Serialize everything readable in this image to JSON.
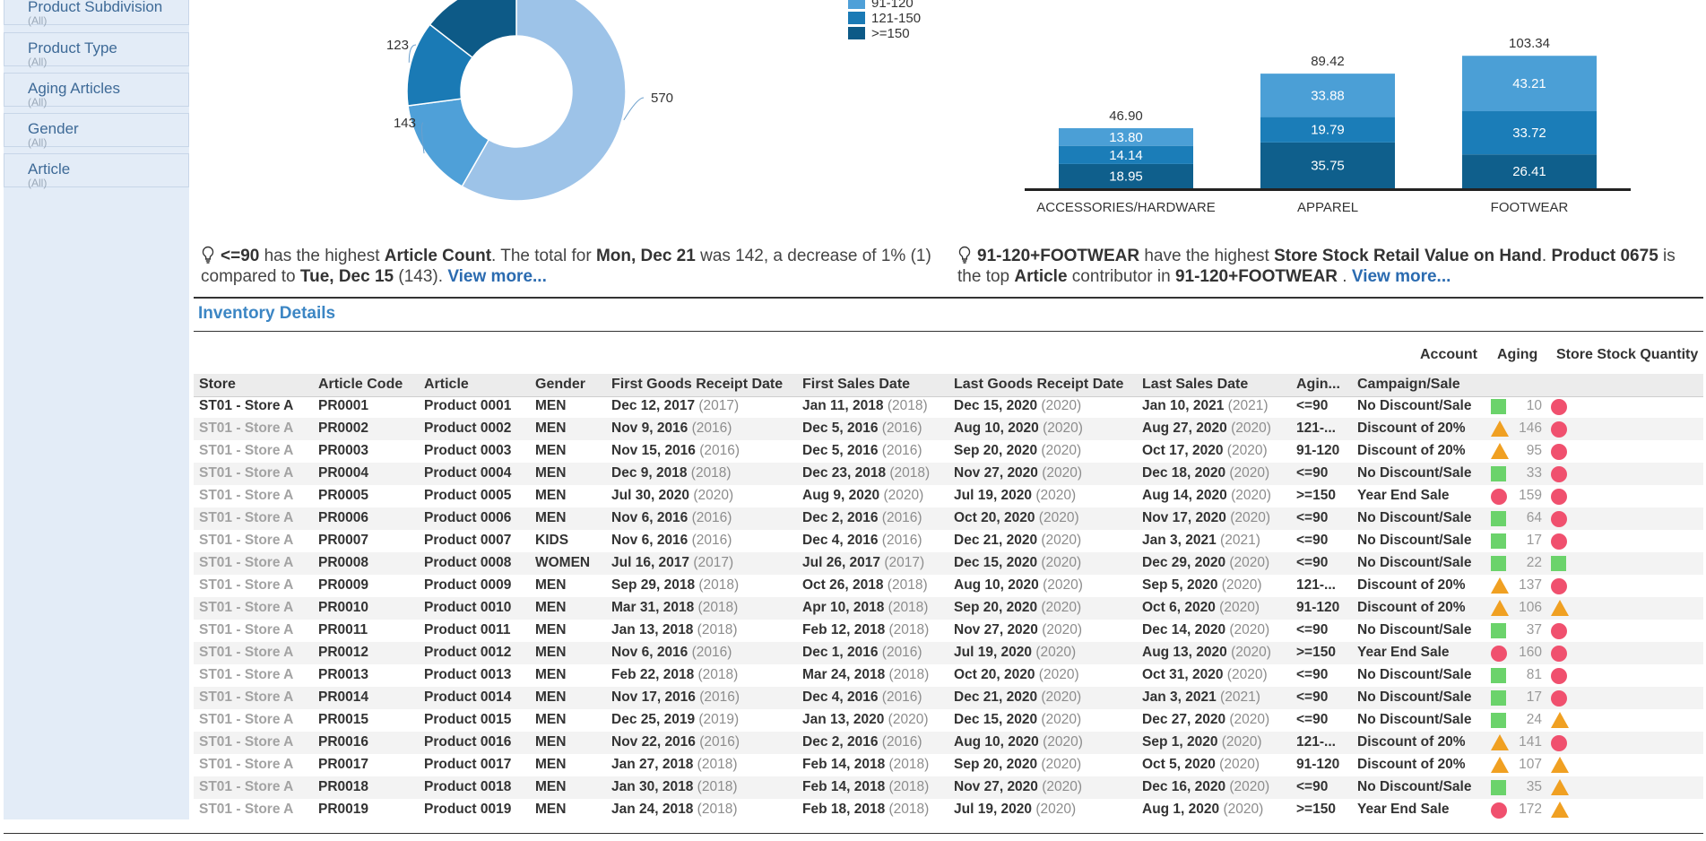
{
  "filters": [
    {
      "title": "Product Subdivision",
      "sub": "(All)"
    },
    {
      "title": "Product Type",
      "sub": "(All)"
    },
    {
      "title": "Aging Articles",
      "sub": "(All)"
    },
    {
      "title": "Gender",
      "sub": "(All)"
    },
    {
      "title": "Article",
      "sub": "(All)"
    }
  ],
  "chart_data": [
    {
      "type": "pie",
      "categories": [
        "<=90",
        "91-120",
        "121-150",
        ">=150"
      ],
      "values": [
        570,
        143,
        123,
        142
      ],
      "value_labels": [
        "570",
        "143",
        "123",
        ""
      ],
      "legend_entries": [
        "91-120",
        "121-150",
        ">=150"
      ],
      "legend_placement": "right",
      "colors": [
        "#9dc3e8",
        "#4fa0d8",
        "#1a7ab5",
        "#0d5a87"
      ]
    },
    {
      "type": "bar",
      "stacked": true,
      "categories": [
        "ACCESSORIES/HARDWARE",
        "APPAREL",
        "FOOTWEAR"
      ],
      "series": [
        {
          "values": [
            18.95,
            35.75,
            26.41
          ]
        },
        {
          "values": [
            14.14,
            19.79,
            33.72
          ]
        },
        {
          "values": [
            13.8,
            33.88,
            43.21
          ]
        }
      ],
      "totals": [
        "46.90",
        "89.42",
        "103.34"
      ],
      "segment_labels": [
        [
          "18.95",
          "14.14",
          "13.80"
        ],
        [
          "35.75",
          "19.79",
          "33.88"
        ],
        [
          "26.41",
          "33.72",
          "43.21"
        ]
      ],
      "colors": [
        "#0f5f8c",
        "#1b7db8",
        "#4b9fd6"
      ],
      "ylim": [
        0,
        110
      ]
    }
  ],
  "insight1": {
    "p1": "<=90",
    "p2": " has the highest ",
    "p3": "Article Count",
    "p4": ". The total for ",
    "p5": "Mon, Dec 21",
    "p6": " was 142, a decrease of 1% (1) compared to ",
    "p7": "Tue, Dec 15",
    "p8": " (143). ",
    "link": "View more..."
  },
  "insight2": {
    "p1": "91-120+FOOTWEAR",
    "p2": " have the highest ",
    "p3": "Store Stock Retail Value on Hand",
    "p4": ". ",
    "p5": "Product 0675",
    "p6": " is the top ",
    "p7": "Article",
    "p8": " contributor in ",
    "p9": "91-120+FOOTWEAR",
    "p10": " . ",
    "link": "View more..."
  },
  "section_title": "Inventory Details",
  "measure_headers": [
    "Account",
    "Aging",
    "Store Stock Quantity"
  ],
  "columns": [
    "Store",
    "Article Code",
    "Article",
    "Gender",
    "First Goods Receipt Date",
    "First Sales Date",
    "Last Goods Receipt Date",
    "Last Sales Date",
    "Agin...",
    "Campaign/Sale"
  ],
  "rows": [
    {
      "store": "ST01 - Store A",
      "code": "PR0001",
      "article": "Product 0001",
      "gender": "MEN",
      "fgr": "Dec 12, 2017",
      "fgr_y": "(2017)",
      "fs": "Jan 11, 2018",
      "fs_y": "(2018)",
      "lgr": "Dec 15, 2020",
      "lgr_y": "(2020)",
      "ls": "Jan 10, 2021",
      "ls_y": "(2021)",
      "aging": "<=90",
      "campaign": "No Discount/Sale",
      "s1": "square",
      "qty": "10",
      "s2": "circle"
    },
    {
      "store": "ST01 - Store A",
      "code": "PR0002",
      "article": "Product 0002",
      "gender": "MEN",
      "fgr": "Nov 9, 2016",
      "fgr_y": "(2016)",
      "fs": "Dec 5, 2016",
      "fs_y": "(2016)",
      "lgr": "Aug 10, 2020",
      "lgr_y": "(2020)",
      "ls": "Aug 27, 2020",
      "ls_y": "(2020)",
      "aging": "121-...",
      "campaign": "Discount of 20%",
      "s1": "triangle",
      "qty": "146",
      "s2": "circle"
    },
    {
      "store": "ST01 - Store A",
      "code": "PR0003",
      "article": "Product 0003",
      "gender": "MEN",
      "fgr": "Nov 15, 2016",
      "fgr_y": "(2016)",
      "fs": "Dec 5, 2016",
      "fs_y": "(2016)",
      "lgr": "Sep 20, 2020",
      "lgr_y": "(2020)",
      "ls": "Oct 17, 2020",
      "ls_y": "(2020)",
      "aging": "91-120",
      "campaign": "Discount of 20%",
      "s1": "triangle",
      "qty": "95",
      "s2": "circle"
    },
    {
      "store": "ST01 - Store A",
      "code": "PR0004",
      "article": "Product 0004",
      "gender": "MEN",
      "fgr": "Dec 9, 2018",
      "fgr_y": "(2018)",
      "fs": "Dec 23, 2018",
      "fs_y": "(2018)",
      "lgr": "Nov 27, 2020",
      "lgr_y": "(2020)",
      "ls": "Dec 18, 2020",
      "ls_y": "(2020)",
      "aging": "<=90",
      "campaign": "No Discount/Sale",
      "s1": "square",
      "qty": "33",
      "s2": "circle"
    },
    {
      "store": "ST01 - Store A",
      "code": "PR0005",
      "article": "Product 0005",
      "gender": "MEN",
      "fgr": "Jul 30, 2020",
      "fgr_y": "(2020)",
      "fs": "Aug 9, 2020",
      "fs_y": "(2020)",
      "lgr": "Jul 19, 2020",
      "lgr_y": "(2020)",
      "ls": "Aug 14, 2020",
      "ls_y": "(2020)",
      "aging": ">=150",
      "campaign": "Year End Sale",
      "s1": "circle",
      "qty": "159",
      "s2": "circle"
    },
    {
      "store": "ST01 - Store A",
      "code": "PR0006",
      "article": "Product 0006",
      "gender": "MEN",
      "fgr": "Nov 6, 2016",
      "fgr_y": "(2016)",
      "fs": "Dec 2, 2016",
      "fs_y": "(2016)",
      "lgr": "Oct 20, 2020",
      "lgr_y": "(2020)",
      "ls": "Nov 17, 2020",
      "ls_y": "(2020)",
      "aging": "<=90",
      "campaign": "No Discount/Sale",
      "s1": "square",
      "qty": "64",
      "s2": "circle"
    },
    {
      "store": "ST01 - Store A",
      "code": "PR0007",
      "article": "Product 0007",
      "gender": "KIDS",
      "fgr": "Nov 6, 2016",
      "fgr_y": "(2016)",
      "fs": "Dec 4, 2016",
      "fs_y": "(2016)",
      "lgr": "Dec 21, 2020",
      "lgr_y": "(2020)",
      "ls": "Jan 3, 2021",
      "ls_y": "(2021)",
      "aging": "<=90",
      "campaign": "No Discount/Sale",
      "s1": "square",
      "qty": "17",
      "s2": "circle"
    },
    {
      "store": "ST01 - Store A",
      "code": "PR0008",
      "article": "Product 0008",
      "gender": "WOMEN",
      "fgr": "Jul 16, 2017",
      "fgr_y": "(2017)",
      "fs": "Jul 26, 2017",
      "fs_y": "(2017)",
      "lgr": "Dec 15, 2020",
      "lgr_y": "(2020)",
      "ls": "Dec 29, 2020",
      "ls_y": "(2020)",
      "aging": "<=90",
      "campaign": "No Discount/Sale",
      "s1": "square",
      "qty": "22",
      "s2": "square"
    },
    {
      "store": "ST01 - Store A",
      "code": "PR0009",
      "article": "Product 0009",
      "gender": "MEN",
      "fgr": "Sep 29, 2018",
      "fgr_y": "(2018)",
      "fs": "Oct 26, 2018",
      "fs_y": "(2018)",
      "lgr": "Aug 10, 2020",
      "lgr_y": "(2020)",
      "ls": "Sep 5, 2020",
      "ls_y": "(2020)",
      "aging": "121-...",
      "campaign": "Discount of 20%",
      "s1": "triangle",
      "qty": "137",
      "s2": "circle"
    },
    {
      "store": "ST01 - Store A",
      "code": "PR0010",
      "article": "Product 0010",
      "gender": "MEN",
      "fgr": "Mar 31, 2018",
      "fgr_y": "(2018)",
      "fs": "Apr 10, 2018",
      "fs_y": "(2018)",
      "lgr": "Sep 20, 2020",
      "lgr_y": "(2020)",
      "ls": "Oct 6, 2020",
      "ls_y": "(2020)",
      "aging": "91-120",
      "campaign": "Discount of 20%",
      "s1": "triangle",
      "qty": "106",
      "s2": "triangle"
    },
    {
      "store": "ST01 - Store A",
      "code": "PR0011",
      "article": "Product 0011",
      "gender": "MEN",
      "fgr": "Jan 13, 2018",
      "fgr_y": "(2018)",
      "fs": "Feb 12, 2018",
      "fs_y": "(2018)",
      "lgr": "Nov 27, 2020",
      "lgr_y": "(2020)",
      "ls": "Dec 14, 2020",
      "ls_y": "(2020)",
      "aging": "<=90",
      "campaign": "No Discount/Sale",
      "s1": "square",
      "qty": "37",
      "s2": "circle"
    },
    {
      "store": "ST01 - Store A",
      "code": "PR0012",
      "article": "Product 0012",
      "gender": "MEN",
      "fgr": "Nov 6, 2016",
      "fgr_y": "(2016)",
      "fs": "Dec 1, 2016",
      "fs_y": "(2016)",
      "lgr": "Jul 19, 2020",
      "lgr_y": "(2020)",
      "ls": "Aug 13, 2020",
      "ls_y": "(2020)",
      "aging": ">=150",
      "campaign": "Year End Sale",
      "s1": "circle",
      "qty": "160",
      "s2": "circle"
    },
    {
      "store": "ST01 - Store A",
      "code": "PR0013",
      "article": "Product 0013",
      "gender": "MEN",
      "fgr": "Feb 22, 2018",
      "fgr_y": "(2018)",
      "fs": "Mar 24, 2018",
      "fs_y": "(2018)",
      "lgr": "Oct 20, 2020",
      "lgr_y": "(2020)",
      "ls": "Oct 31, 2020",
      "ls_y": "(2020)",
      "aging": "<=90",
      "campaign": "No Discount/Sale",
      "s1": "square",
      "qty": "81",
      "s2": "circle"
    },
    {
      "store": "ST01 - Store A",
      "code": "PR0014",
      "article": "Product 0014",
      "gender": "MEN",
      "fgr": "Nov 17, 2016",
      "fgr_y": "(2016)",
      "fs": "Dec 4, 2016",
      "fs_y": "(2016)",
      "lgr": "Dec 21, 2020",
      "lgr_y": "(2020)",
      "ls": "Jan 3, 2021",
      "ls_y": "(2021)",
      "aging": "<=90",
      "campaign": "No Discount/Sale",
      "s1": "square",
      "qty": "17",
      "s2": "circle"
    },
    {
      "store": "ST01 - Store A",
      "code": "PR0015",
      "article": "Product 0015",
      "gender": "MEN",
      "fgr": "Dec 25, 2019",
      "fgr_y": "(2019)",
      "fs": "Jan 13, 2020",
      "fs_y": "(2020)",
      "lgr": "Dec 15, 2020",
      "lgr_y": "(2020)",
      "ls": "Dec 27, 2020",
      "ls_y": "(2020)",
      "aging": "<=90",
      "campaign": "No Discount/Sale",
      "s1": "square",
      "qty": "24",
      "s2": "triangle"
    },
    {
      "store": "ST01 - Store A",
      "code": "PR0016",
      "article": "Product 0016",
      "gender": "MEN",
      "fgr": "Nov 22, 2016",
      "fgr_y": "(2016)",
      "fs": "Dec 2, 2016",
      "fs_y": "(2016)",
      "lgr": "Aug 10, 2020",
      "lgr_y": "(2020)",
      "ls": "Sep 1, 2020",
      "ls_y": "(2020)",
      "aging": "121-...",
      "campaign": "Discount of 20%",
      "s1": "triangle",
      "qty": "141",
      "s2": "circle"
    },
    {
      "store": "ST01 - Store A",
      "code": "PR0017",
      "article": "Product 0017",
      "gender": "MEN",
      "fgr": "Jan 27, 2018",
      "fgr_y": "(2018)",
      "fs": "Feb 14, 2018",
      "fs_y": "(2018)",
      "lgr": "Sep 20, 2020",
      "lgr_y": "(2020)",
      "ls": "Oct 5, 2020",
      "ls_y": "(2020)",
      "aging": "91-120",
      "campaign": "Discount of 20%",
      "s1": "triangle",
      "qty": "107",
      "s2": "triangle"
    },
    {
      "store": "ST01 - Store A",
      "code": "PR0018",
      "article": "Product 0018",
      "gender": "MEN",
      "fgr": "Jan 30, 2018",
      "fgr_y": "(2018)",
      "fs": "Feb 14, 2018",
      "fs_y": "(2018)",
      "lgr": "Nov 27, 2020",
      "lgr_y": "(2020)",
      "ls": "Dec 16, 2020",
      "ls_y": "(2020)",
      "aging": "<=90",
      "campaign": "No Discount/Sale",
      "s1": "square",
      "qty": "35",
      "s2": "triangle"
    },
    {
      "store": "ST01 - Store A",
      "code": "PR0019",
      "article": "Product 0019",
      "gender": "MEN",
      "fgr": "Jan 24, 2018",
      "fgr_y": "(2018)",
      "fs": "Feb 18, 2018",
      "fs_y": "(2018)",
      "lgr": "Jul 19, 2020",
      "lgr_y": "(2020)",
      "ls": "Aug 1, 2020",
      "ls_y": "(2020)",
      "aging": ">=150",
      "campaign": "Year End Sale",
      "s1": "circle",
      "qty": "172",
      "s2": "triangle"
    }
  ]
}
